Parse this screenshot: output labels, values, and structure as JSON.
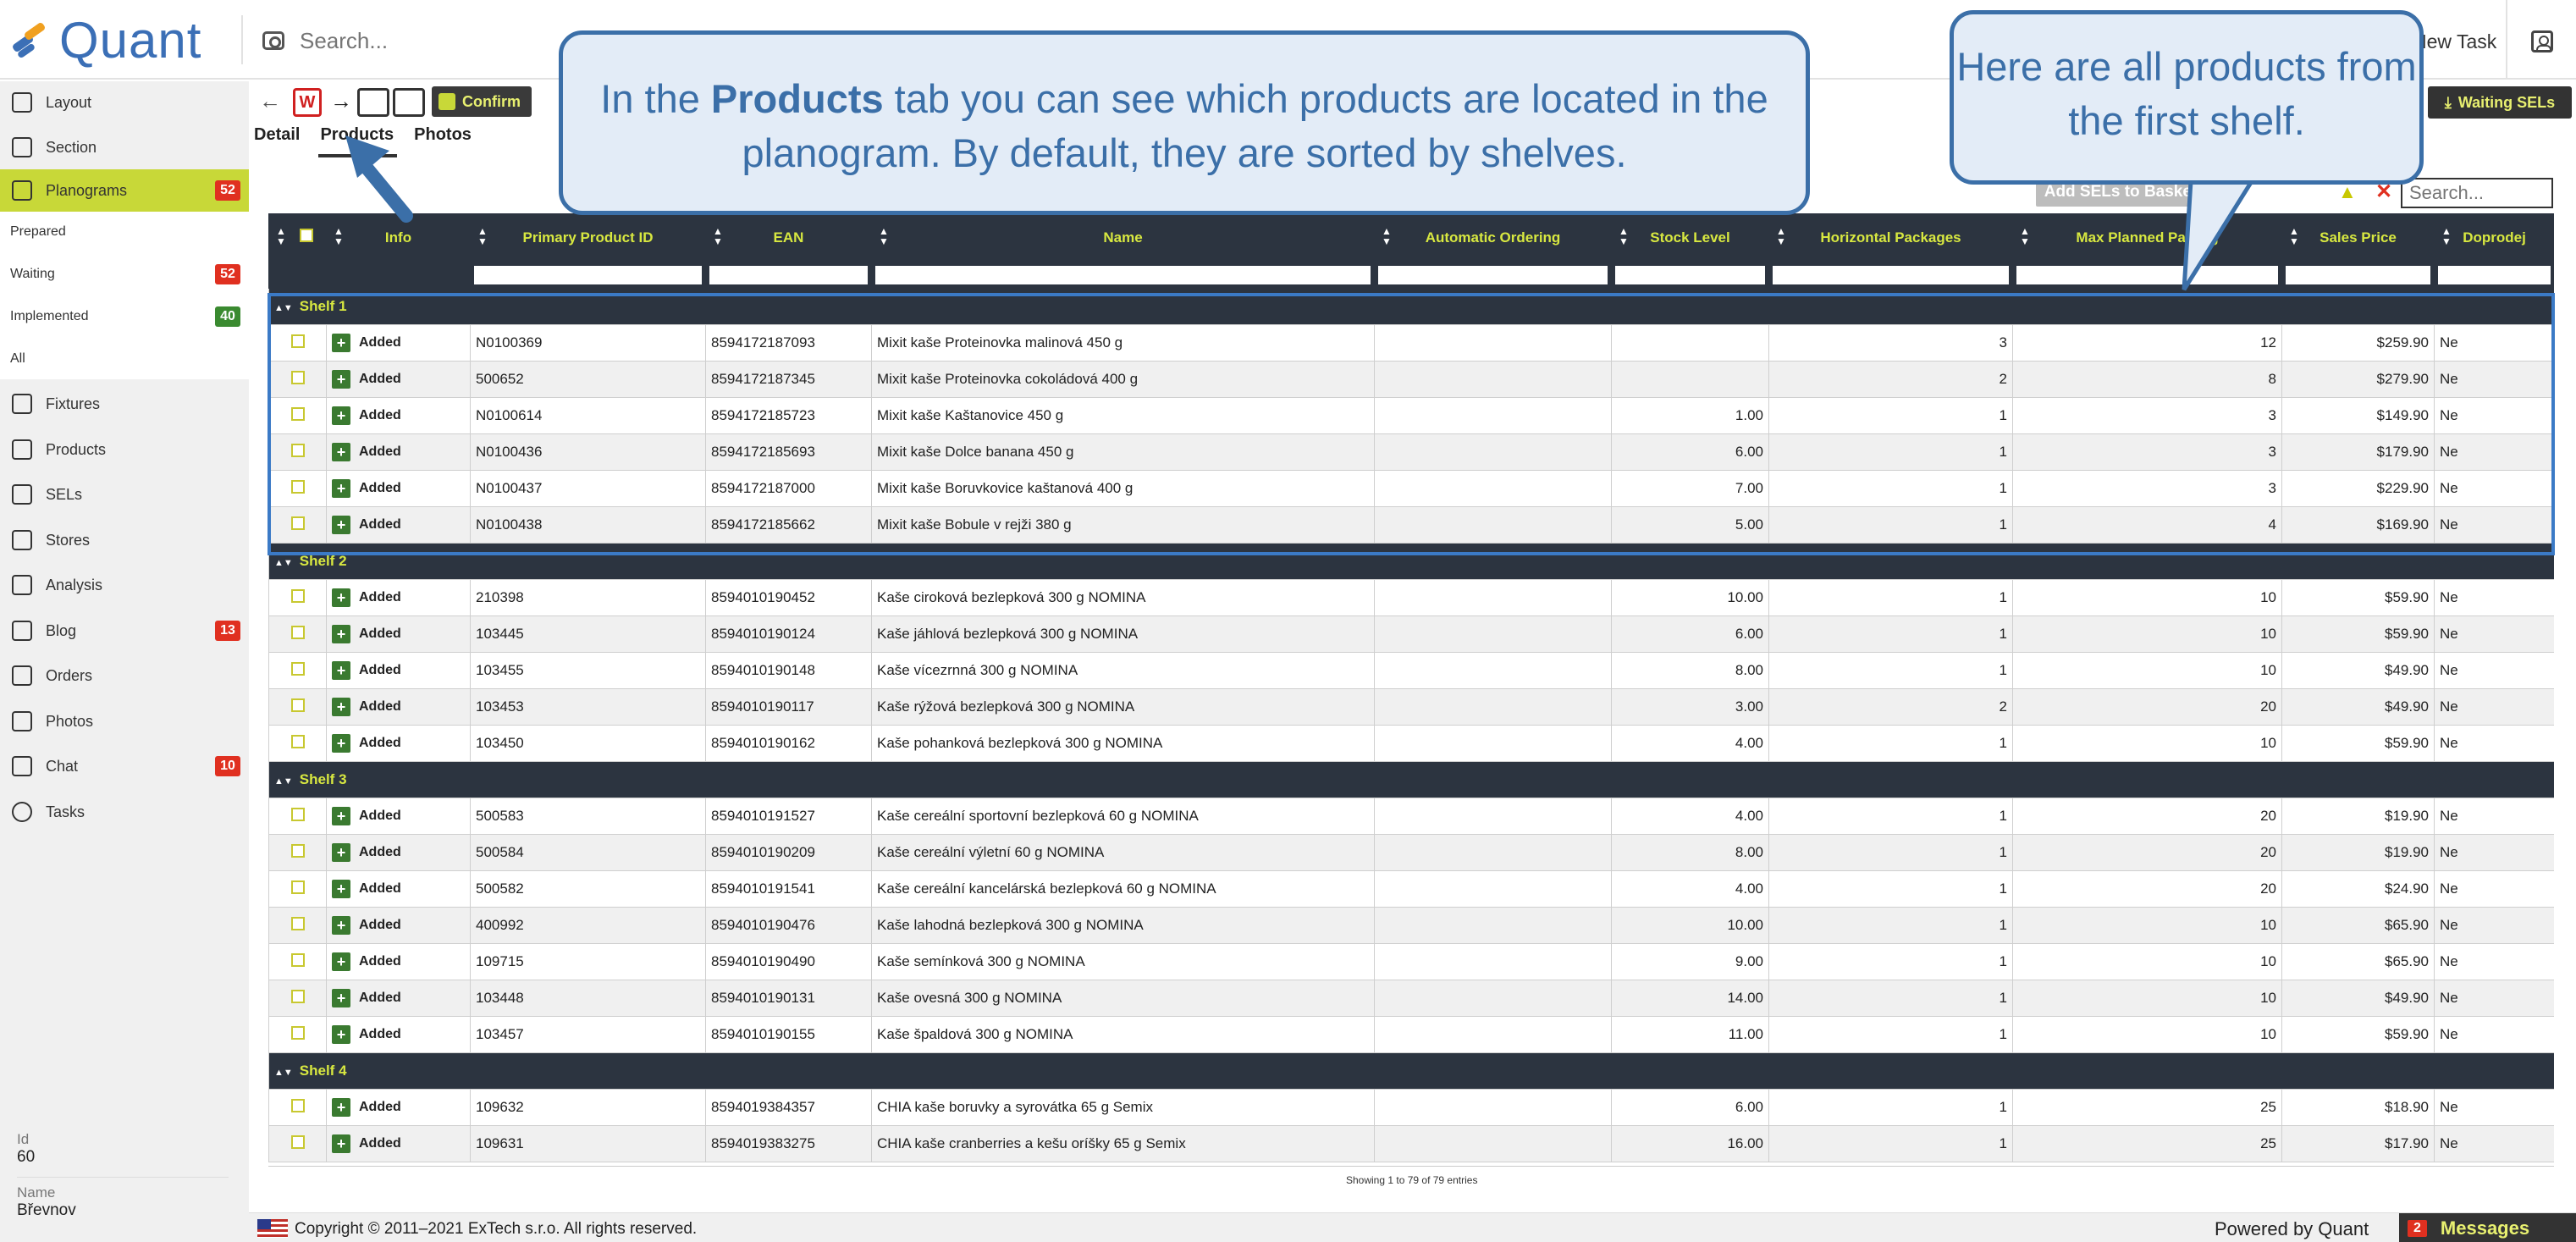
{
  "app": {
    "logo_text": "Quant"
  },
  "topbar": {
    "search_placeholder": "Search...",
    "new_task": "New Task"
  },
  "sidebar": {
    "items": [
      {
        "label": "Layout"
      },
      {
        "label": "Section"
      },
      {
        "label": "Planograms",
        "badge": "52",
        "active": true
      },
      {
        "label": "Fixtures"
      },
      {
        "label": "Products"
      },
      {
        "label": "SELs"
      },
      {
        "label": "Stores"
      },
      {
        "label": "Analysis"
      },
      {
        "label": "Blog",
        "badge": "13"
      },
      {
        "label": "Orders"
      },
      {
        "label": "Photos"
      },
      {
        "label": "Chat",
        "badge": "10"
      },
      {
        "label": "Tasks"
      }
    ],
    "subitems": [
      {
        "label": "Prepared"
      },
      {
        "label": "Waiting",
        "badge": "52"
      },
      {
        "label": "Implemented",
        "badge": "40"
      },
      {
        "label": "All"
      }
    ],
    "info": {
      "id_label": "Id",
      "id_value": "60",
      "name_label": "Name",
      "name_value": "Břevnov"
    }
  },
  "toolbar": {
    "w_label": "W",
    "confirm": "Confirm",
    "waiting_sels": "Waiting SELs"
  },
  "tabs": [
    {
      "label": "Detail"
    },
    {
      "label": "Products",
      "active": true
    },
    {
      "label": "Photos"
    }
  ],
  "table_controls": {
    "add_sels": "Add SELs to Basket",
    "search_placeholder": "Search...",
    "up_glyph": "▲",
    "close_glyph": "✕"
  },
  "table": {
    "columns": [
      "",
      "Info",
      "Primary Product ID",
      "EAN",
      "Name",
      "Automatic Ordering",
      "Stock Level",
      "Horizontal Packages",
      "Max Planned Packag",
      "Sales Price",
      "Doprodej"
    ],
    "status_label": "Added",
    "shelves": [
      {
        "name": "Shelf 1",
        "rows": [
          {
            "id": "N0100369",
            "ean": "8594172187093",
            "name": "Mixit kaše Proteinovka malinová 450 g",
            "auto": "",
            "stock": "",
            "hpack": "3",
            "maxpack": "12",
            "price": "$259.90",
            "dop": "Ne"
          },
          {
            "id": "500652",
            "ean": "8594172187345",
            "name": "Mixit kaše Proteinovka cokoládová 400 g",
            "auto": "",
            "stock": "",
            "hpack": "2",
            "maxpack": "8",
            "price": "$279.90",
            "dop": "Ne"
          },
          {
            "id": "N0100614",
            "ean": "8594172185723",
            "name": "Mixit kaše Kaštanovice 450 g",
            "auto": "",
            "stock": "1.00",
            "hpack": "1",
            "maxpack": "3",
            "price": "$149.90",
            "dop": "Ne"
          },
          {
            "id": "N0100436",
            "ean": "8594172185693",
            "name": "Mixit kaše Dolce banana 450 g",
            "auto": "",
            "stock": "6.00",
            "hpack": "1",
            "maxpack": "3",
            "price": "$179.90",
            "dop": "Ne"
          },
          {
            "id": "N0100437",
            "ean": "8594172187000",
            "name": "Mixit kaše Boruvkovice kaštanová 400 g",
            "auto": "",
            "stock": "7.00",
            "hpack": "1",
            "maxpack": "3",
            "price": "$229.90",
            "dop": "Ne"
          },
          {
            "id": "N0100438",
            "ean": "8594172185662",
            "name": "Mixit kaše Bobule v rejži 380 g",
            "auto": "",
            "stock": "5.00",
            "hpack": "1",
            "maxpack": "4",
            "price": "$169.90",
            "dop": "Ne"
          }
        ]
      },
      {
        "name": "Shelf 2",
        "rows": [
          {
            "id": "210398",
            "ean": "8594010190452",
            "name": "Kaše ciroková bezlepková 300 g NOMINA",
            "auto": "",
            "stock": "10.00",
            "hpack": "1",
            "maxpack": "10",
            "price": "$59.90",
            "dop": "Ne"
          },
          {
            "id": "103445",
            "ean": "8594010190124",
            "name": "Kaše jáhlová bezlepková 300 g NOMINA",
            "auto": "",
            "stock": "6.00",
            "hpack": "1",
            "maxpack": "10",
            "price": "$59.90",
            "dop": "Ne"
          },
          {
            "id": "103455",
            "ean": "8594010190148",
            "name": "Kaše vícezrnná 300 g NOMINA",
            "auto": "",
            "stock": "8.00",
            "hpack": "1",
            "maxpack": "10",
            "price": "$49.90",
            "dop": "Ne"
          },
          {
            "id": "103453",
            "ean": "8594010190117",
            "name": "Kaše rýžová bezlepková 300 g NOMINA",
            "auto": "",
            "stock": "3.00",
            "hpack": "2",
            "maxpack": "20",
            "price": "$49.90",
            "dop": "Ne"
          },
          {
            "id": "103450",
            "ean": "8594010190162",
            "name": "Kaše pohanková bezlepková 300 g NOMINA",
            "auto": "",
            "stock": "4.00",
            "hpack": "1",
            "maxpack": "10",
            "price": "$59.90",
            "dop": "Ne"
          }
        ]
      },
      {
        "name": "Shelf 3",
        "rows": [
          {
            "id": "500583",
            "ean": "8594010191527",
            "name": "Kaše cereální sportovní bezlepková 60 g NOMINA",
            "auto": "",
            "stock": "4.00",
            "hpack": "1",
            "maxpack": "20",
            "price": "$19.90",
            "dop": "Ne"
          },
          {
            "id": "500584",
            "ean": "8594010190209",
            "name": "Kaše cereální výletní 60 g NOMINA",
            "auto": "",
            "stock": "8.00",
            "hpack": "1",
            "maxpack": "20",
            "price": "$19.90",
            "dop": "Ne"
          },
          {
            "id": "500582",
            "ean": "8594010191541",
            "name": "Kaše cereální kancelárská bezlepková 60 g NOMINA",
            "auto": "",
            "stock": "4.00",
            "hpack": "1",
            "maxpack": "20",
            "price": "$24.90",
            "dop": "Ne"
          },
          {
            "id": "400992",
            "ean": "8594010190476",
            "name": "Kaše lahodná bezlepková 300 g NOMINA",
            "auto": "",
            "stock": "10.00",
            "hpack": "1",
            "maxpack": "10",
            "price": "$65.90",
            "dop": "Ne"
          },
          {
            "id": "109715",
            "ean": "8594010190490",
            "name": "Kaše semínková 300 g NOMINA",
            "auto": "",
            "stock": "9.00",
            "hpack": "1",
            "maxpack": "10",
            "price": "$65.90",
            "dop": "Ne"
          },
          {
            "id": "103448",
            "ean": "8594010190131",
            "name": "Kaše ovesná 300 g NOMINA",
            "auto": "",
            "stock": "14.00",
            "hpack": "1",
            "maxpack": "10",
            "price": "$49.90",
            "dop": "Ne"
          },
          {
            "id": "103457",
            "ean": "8594010190155",
            "name": "Kaše špaldová 300 g NOMINA",
            "auto": "",
            "stock": "11.00",
            "hpack": "1",
            "maxpack": "10",
            "price": "$59.90",
            "dop": "Ne"
          }
        ]
      },
      {
        "name": "Shelf 4",
        "rows": [
          {
            "id": "109632",
            "ean": "8594019384357",
            "name": "CHIA kaše boruvky a syrovátka 65 g Semix",
            "auto": "",
            "stock": "6.00",
            "hpack": "1",
            "maxpack": "25",
            "price": "$18.90",
            "dop": "Ne"
          },
          {
            "id": "109631",
            "ean": "8594019383275",
            "name": "CHIA kaše cranberries a kešu oríšky 65 g Semix",
            "auto": "",
            "stock": "16.00",
            "hpack": "1",
            "maxpack": "25",
            "price": "$17.90",
            "dop": "Ne"
          }
        ]
      }
    ],
    "footer_text": "Showing 1 to 79 of 79 entries"
  },
  "callouts": {
    "products_tab": {
      "pre": "In the ",
      "bold": "Products",
      "post": " tab you can see which products are located in the planogram. By default, they are sorted by shelves."
    },
    "first_shelf": {
      "text": "Here are all products from the first shelf."
    }
  },
  "footer": {
    "copyright": "Copyright © 2011–2021 ExTech s.r.o. All rights reserved.",
    "powered_by": "Powered by Quant",
    "messages_label": "Messages",
    "messages_count": "2"
  },
  "colors": {
    "accent": "#c8d838",
    "header_bg": "#2c3440",
    "header_text": "#d8e840",
    "callout_border": "#3b6fa8",
    "badge_red": "#e03020",
    "badge_green": "#3a8a30"
  }
}
